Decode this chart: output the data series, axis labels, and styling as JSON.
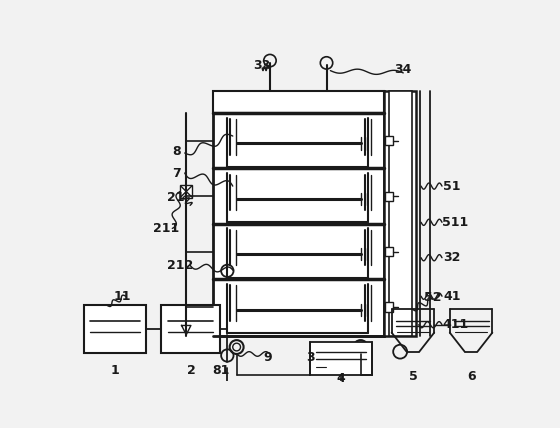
{
  "bg_color": "#f2f2f2",
  "line_color": "#1a1a1a",
  "white_fill": "#ffffff",
  "fig_w": 5.6,
  "fig_h": 4.28,
  "dpi": 100
}
